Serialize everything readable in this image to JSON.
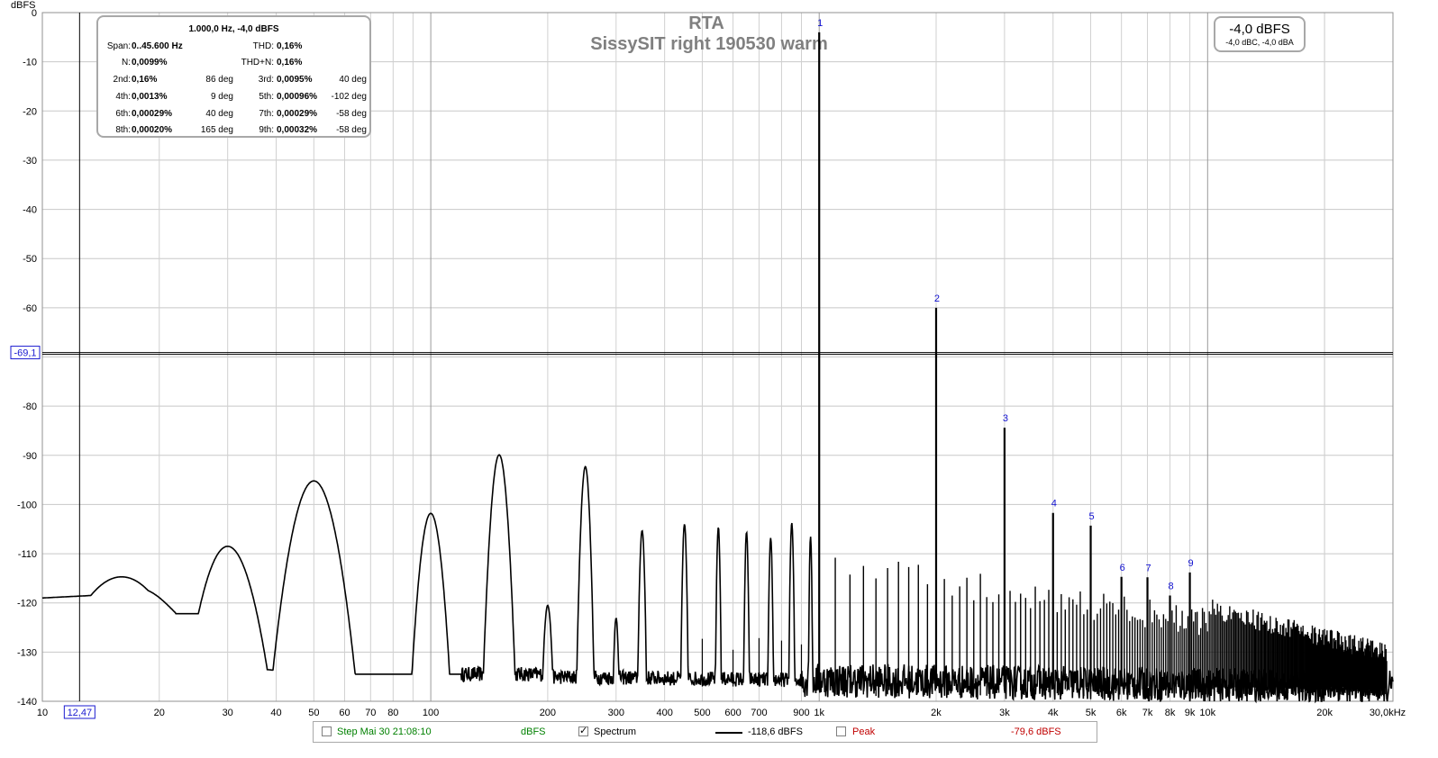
{
  "chart_data": {
    "type": "line",
    "title": "RTA",
    "subtitle": "SissySIT right 190530 warm",
    "ylabel": "dBFS",
    "xlabel": "",
    "x_scale": "log",
    "xlim": [
      10,
      30000
    ],
    "ylim": [
      -140,
      0
    ],
    "y_ticks": [
      "0",
      "-10",
      "-20",
      "-30",
      "-40",
      "-50",
      "-60",
      "-80",
      "-90",
      "-100",
      "-110",
      "-120",
      "-130",
      "-140"
    ],
    "y_tick_values": [
      0,
      -10,
      -20,
      -30,
      -40,
      -50,
      -60,
      -80,
      -90,
      -100,
      -110,
      -120,
      -130,
      -140
    ],
    "x_ticks": [
      {
        "v": 10,
        "t": "10"
      },
      {
        "v": 20,
        "t": "20"
      },
      {
        "v": 30,
        "t": "30"
      },
      {
        "v": 40,
        "t": "40"
      },
      {
        "v": 50,
        "t": "50"
      },
      {
        "v": 60,
        "t": "60"
      },
      {
        "v": 70,
        "t": "70"
      },
      {
        "v": 80,
        "t": "80"
      },
      {
        "v": 100,
        "t": "100"
      },
      {
        "v": 200,
        "t": "200"
      },
      {
        "v": 300,
        "t": "300"
      },
      {
        "v": 400,
        "t": "400"
      },
      {
        "v": 500,
        "t": "500"
      },
      {
        "v": 600,
        "t": "600"
      },
      {
        "v": 700,
        "t": "700"
      },
      {
        "v": 900,
        "t": "900"
      },
      {
        "v": 1000,
        "t": "1k"
      },
      {
        "v": 2000,
        "t": "2k"
      },
      {
        "v": 3000,
        "t": "3k"
      },
      {
        "v": 4000,
        "t": "4k"
      },
      {
        "v": 5000,
        "t": "5k"
      },
      {
        "v": 6000,
        "t": "6k"
      },
      {
        "v": 7000,
        "t": "7k"
      },
      {
        "v": 8000,
        "t": "8k"
      },
      {
        "v": 9000,
        "t": "9k"
      },
      {
        "v": 10000,
        "t": "10k"
      },
      {
        "v": 20000,
        "t": "20k"
      },
      {
        "v": 30000,
        "t": "30,0kHz"
      }
    ],
    "grid": true,
    "cursor": {
      "x": 12.47,
      "x_label": "12,47",
      "y": -69.1,
      "y_label": "-69,1"
    },
    "harmonic_markers": [
      {
        "n": "1",
        "f": 1000,
        "db": -4.0
      },
      {
        "n": "2",
        "f": 2000,
        "db": -60.0
      },
      {
        "n": "3",
        "f": 3000,
        "db": -84.4
      },
      {
        "n": "4",
        "f": 4000,
        "db": -101.7
      },
      {
        "n": "5",
        "f": 5000,
        "db": -104.3
      },
      {
        "n": "6",
        "f": 6000,
        "db": -114.7
      },
      {
        "n": "7",
        "f": 7000,
        "db": -114.8
      },
      {
        "n": "8",
        "f": 8000,
        "db": -118.5
      },
      {
        "n": "9",
        "f": 9000,
        "db": -113.8
      }
    ],
    "spectrum_peaks": [
      {
        "f": 16,
        "db": -114.7,
        "w": 0.12
      },
      {
        "f": 30,
        "db": -108.5,
        "w": 0.06
      },
      {
        "f": 50,
        "db": -95.2,
        "w": 0.05
      },
      {
        "f": 100,
        "db": -101.8,
        "w": 0.025
      },
      {
        "f": 150,
        "db": -89.9,
        "w": 0.018
      },
      {
        "f": 200,
        "db": -120.5,
        "w": 0.01
      },
      {
        "f": 250,
        "db": -92.3,
        "w": 0.01
      },
      {
        "f": 300,
        "db": -123.1,
        "w": 0.006
      },
      {
        "f": 350,
        "db": -105.3,
        "w": 0.006
      },
      {
        "f": 450,
        "db": -104.0,
        "w": 0.005
      },
      {
        "f": 550,
        "db": -104.6,
        "w": 0.004
      },
      {
        "f": 650,
        "db": -105.6,
        "w": 0.004
      },
      {
        "f": 750,
        "db": -106.8,
        "w": 0.004
      },
      {
        "f": 850,
        "db": -103.7,
        "w": 0.004
      },
      {
        "f": 950,
        "db": -106.5,
        "w": 0.003
      }
    ],
    "series": [
      {
        "name": "Spectrum",
        "color": "#000000",
        "legend_value": "-118,6 dBFS",
        "visible": true
      },
      {
        "name": "Peak",
        "color": "#c00000",
        "legend_value": "-79,6 dBFS",
        "visible": false
      }
    ]
  },
  "distortion_panel": {
    "header": "1.000,0 Hz, -4,0 dBFS",
    "span_label": "Span:",
    "span_value": "0..45.600 Hz",
    "thd_label": "THD:",
    "thd_value": "0,16%",
    "n_label": "N:",
    "n_value": "0,0099%",
    "thdn_label": "THD+N:",
    "thdn_value": "0,16%",
    "harmonics": [
      {
        "label": "2nd:",
        "value": "0,16%",
        "phase": "86 deg"
      },
      {
        "label": "3rd:",
        "value": "0,0095%",
        "phase": "40 deg"
      },
      {
        "label": "4th:",
        "value": "0,0013%",
        "phase": "9 deg"
      },
      {
        "label": "5th:",
        "value": "0,00096%",
        "phase": "-102 deg"
      },
      {
        "label": "6th:",
        "value": "0,00029%",
        "phase": "40 deg"
      },
      {
        "label": "7th:",
        "value": "0,00029%",
        "phase": "-58 deg"
      },
      {
        "label": "8th:",
        "value": "0,00020%",
        "phase": "165 deg"
      },
      {
        "label": "9th:",
        "value": "0,00032%",
        "phase": "-58 deg"
      }
    ]
  },
  "level_meter": {
    "main": "-4,0 dBFS",
    "sub": "-4,0 dBC, -4,0 dBA"
  },
  "legend": {
    "step_label": "Step Mai 30 21:08:10",
    "step_unit": "dBFS",
    "spectrum_label": "Spectrum",
    "spectrum_checked": "✓",
    "spectrum_value": "-118,6 dBFS",
    "peak_label": "Peak",
    "peak_value": "-79,6 dBFS",
    "colors": {
      "step": "#008000",
      "peak": "#c00000"
    }
  }
}
